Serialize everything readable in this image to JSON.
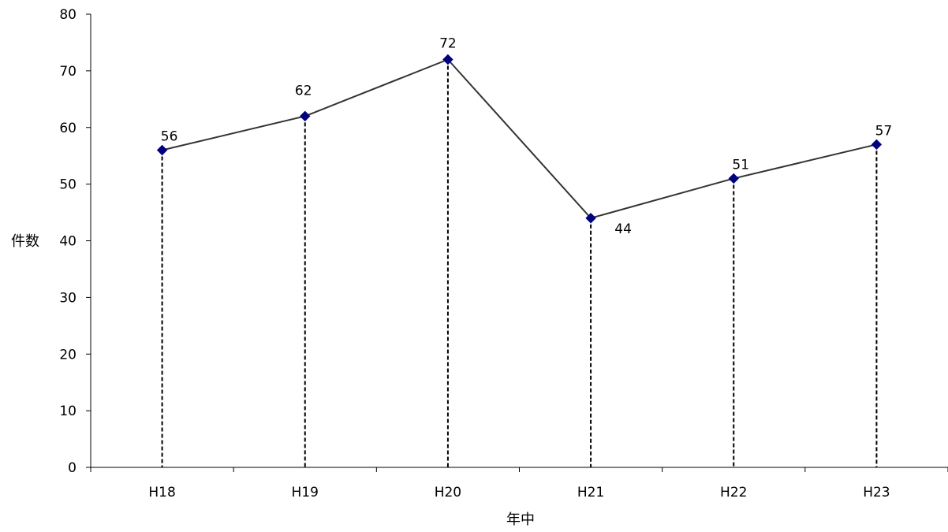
{
  "chart_data": {
    "type": "line",
    "title": "",
    "xlabel": "年中",
    "ylabel": "件数",
    "categories": [
      "H18",
      "H19",
      "H20",
      "H21",
      "H22",
      "H23"
    ],
    "series": [
      {
        "values": [
          56,
          62,
          72,
          44,
          51,
          57
        ]
      }
    ],
    "data_labels": [
      "56",
      "62",
      "72",
      "44",
      "51",
      "57"
    ],
    "ylim": [
      0,
      80
    ],
    "yticks": [
      "0",
      "10",
      "20",
      "30",
      "40",
      "50",
      "60",
      "70",
      "80"
    ],
    "grid": false,
    "drop_lines": true,
    "marker": "diamond",
    "colors": {
      "line": "#333333",
      "marker": "#000080",
      "axis": "#000000",
      "drop_line": "#000000"
    }
  }
}
